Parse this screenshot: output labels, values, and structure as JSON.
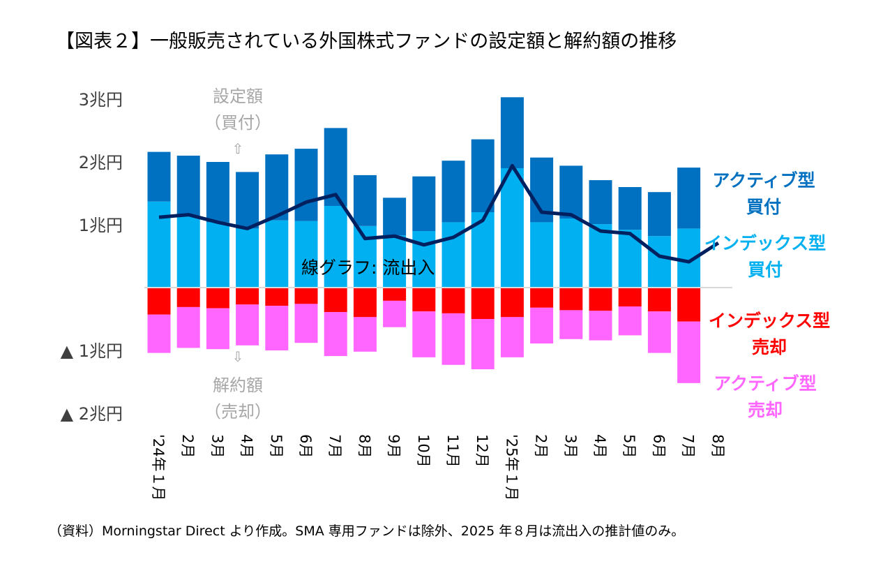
{
  "chart_data": {
    "type": "bar",
    "title": "【図表２】一般販売されている外国株式ファンドの設定額と解約額の推移",
    "categories": [
      "'24年１月",
      "2月",
      "3月",
      "4月",
      "5月",
      "6月",
      "7月",
      "8月",
      "9月",
      "10月",
      "11月",
      "12月",
      "'25年１月",
      "2月",
      "3月",
      "4月",
      "5月",
      "6月",
      "7月",
      "8月"
    ],
    "unit": "兆円",
    "yticks": [
      "3兆円",
      "2兆円",
      "1兆円",
      "▲ 1兆円",
      "▲ 2兆円"
    ],
    "ylim": [
      -2,
      3
    ],
    "stacked": true,
    "series": [
      {
        "name": "インデックス型 買付",
        "color": "#00B0F0",
        "values": [
          1.37,
          1.13,
          1.04,
          0.94,
          1.07,
          1.06,
          1.3,
          0.98,
          0.83,
          0.9,
          1.04,
          1.2,
          1.9,
          1.04,
          1.1,
          1.01,
          0.92,
          0.82,
          0.94,
          null
        ]
      },
      {
        "name": "アクティブ型 買付",
        "color": "#0070C0",
        "values": [
          0.79,
          0.97,
          0.96,
          0.9,
          1.05,
          1.15,
          1.24,
          0.81,
          0.6,
          0.87,
          0.98,
          1.16,
          1.13,
          1.03,
          0.84,
          0.7,
          0.68,
          0.7,
          0.97,
          null
        ]
      },
      {
        "name": "インデックス型 売却",
        "color": "#FF0000",
        "values": [
          -0.43,
          -0.31,
          -0.33,
          -0.27,
          -0.29,
          -0.26,
          -0.39,
          -0.47,
          -0.21,
          -0.38,
          -0.41,
          -0.5,
          -0.47,
          -0.32,
          -0.36,
          -0.37,
          -0.3,
          -0.38,
          -0.54,
          null
        ]
      },
      {
        "name": "アクティブ型 売却",
        "color": "#FF66FF",
        "values": [
          -0.61,
          -0.65,
          -0.65,
          -0.65,
          -0.71,
          -0.62,
          -0.7,
          -0.55,
          -0.42,
          -0.73,
          -0.82,
          -0.8,
          -0.64,
          -0.57,
          -0.46,
          -0.47,
          -0.46,
          -0.66,
          -0.98,
          null
        ]
      },
      {
        "name": "流出入",
        "type": "line",
        "color": "#002060",
        "values": [
          1.12,
          1.16,
          1.04,
          0.94,
          1.14,
          1.36,
          1.48,
          0.78,
          0.82,
          0.68,
          0.8,
          1.07,
          1.94,
          1.2,
          1.16,
          0.9,
          0.86,
          0.5,
          0.41,
          0.71
        ]
      }
    ],
    "annotations": {
      "buy": "設定額",
      "buy_sub": "（買付）",
      "up_arrow": "⇧",
      "sell": "解約額",
      "sell_sub": "（売却）",
      "down_arrow": "⇩",
      "line_label": "線グラフ: 流出入"
    },
    "legend": [
      {
        "line1": "アクティブ型",
        "line2": "買付",
        "color": "#0070C0"
      },
      {
        "line1": "インデックス型",
        "line2": "買付",
        "color": "#00B0F0"
      },
      {
        "line1": "インデックス型",
        "line2": "売却",
        "color": "#FF0000"
      },
      {
        "line1": "アクティブ型",
        "line2": "売却",
        "color": "#FF66FF"
      }
    ],
    "legend_placement": "right",
    "grid": false
  },
  "source": "（資料）Morningstar Direct より作成。SMA 専用ファンドは除外、2025 年８月は流出入の推計値のみ。"
}
